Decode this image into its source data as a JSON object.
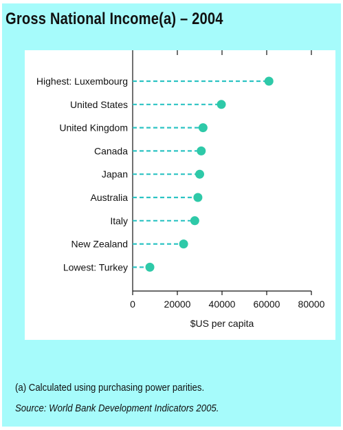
{
  "title": "Gross National Income(a) – 2004",
  "footnote": "(a) Calculated using purchasing power parities.",
  "source": "Source: World Bank Development Indicators 2005.",
  "colors": {
    "panel": "#a6fbfb",
    "marker": "#2ec9a8",
    "leader": "#2cc3c3"
  },
  "chart_data": {
    "type": "scatter",
    "title": "Gross National Income(a) – 2004",
    "xlabel": "$US per capita",
    "ylabel": "",
    "xlim": [
      0,
      80000
    ],
    "xticks": [
      0,
      20000,
      40000,
      60000,
      80000
    ],
    "xtick_labels": [
      "0",
      "20000",
      "40000",
      "60000",
      "80000"
    ],
    "grid": false,
    "categories": [
      "Highest: Luxembourg",
      "United States",
      "United Kingdom",
      "Canada",
      "Japan",
      "Australia",
      "Italy",
      "New Zealand",
      "Lowest: Turkey"
    ],
    "values": [
      61000,
      39700,
      31500,
      30700,
      30000,
      29200,
      27800,
      22800,
      7700
    ]
  }
}
